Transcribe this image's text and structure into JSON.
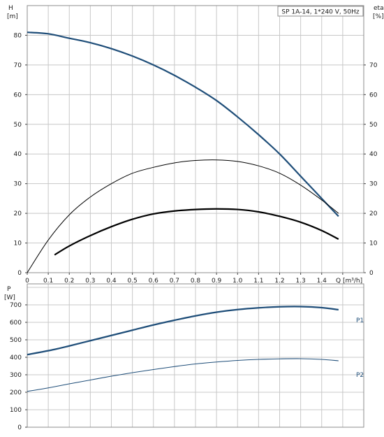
{
  "chart_data": [
    {
      "type": "line",
      "title": "SP 1A-14, 1*240 V, 50Hz",
      "ylabel": "H",
      "yunit": "[m]",
      "y2label": "eta",
      "y2unit": "[%]",
      "xlabel": "Q",
      "xunit": "[m³/h]",
      "xlim": [
        0,
        1.6
      ],
      "ylim": [
        0,
        90
      ],
      "grid": true,
      "x_ticks": [
        "0",
        "0.1",
        "0.2",
        "0.3",
        "0.4",
        "0.5",
        "0.6",
        "0.7",
        "0.8",
        "0.9",
        "1.0",
        "1.1",
        "1.2",
        "1.3",
        "1.4"
      ],
      "y_ticks": [
        "0",
        "10",
        "20",
        "30",
        "40",
        "50",
        "60",
        "70",
        "80"
      ],
      "y2_ticks": [
        "0",
        "10",
        "20",
        "30",
        "40",
        "50",
        "60",
        "70"
      ],
      "series": [
        {
          "key": "head",
          "color": "#1f4e79",
          "x": [
            0,
            0.1,
            0.2,
            0.3,
            0.4,
            0.5,
            0.6,
            0.7,
            0.8,
            0.9,
            1.0,
            1.1,
            1.2,
            1.3,
            1.4,
            1.48
          ],
          "y": [
            81,
            80.5,
            79,
            77.5,
            75.5,
            73,
            70,
            66.5,
            62.5,
            58,
            52.5,
            46.5,
            40,
            32.5,
            25,
            19
          ]
        },
        {
          "key": "efficiency",
          "color": "#000000",
          "x": [
            0,
            0.1,
            0.2,
            0.3,
            0.4,
            0.5,
            0.6,
            0.7,
            0.8,
            0.9,
            1.0,
            1.1,
            1.2,
            1.3,
            1.4,
            1.48
          ],
          "y": [
            0,
            11,
            19.5,
            25.5,
            30,
            33.5,
            35.5,
            37,
            37.8,
            38,
            37.5,
            36,
            33.5,
            29.5,
            24.5,
            20
          ]
        },
        {
          "key": "eta-bold",
          "color": "#000000",
          "x": [
            0.13,
            0.2,
            0.3,
            0.4,
            0.5,
            0.6,
            0.7,
            0.8,
            0.9,
            1.0,
            1.1,
            1.2,
            1.3,
            1.4,
            1.48
          ],
          "y": [
            6,
            9,
            12.5,
            15.5,
            18,
            19.8,
            20.8,
            21.3,
            21.5,
            21.3,
            20.5,
            19,
            17,
            14.2,
            11.3
          ]
        }
      ]
    },
    {
      "type": "line",
      "ylabel": "P",
      "yunit": "[W]",
      "xlim": [
        0,
        1.6
      ],
      "ylim": [
        0,
        820
      ],
      "grid": true,
      "y_ticks": [
        "0",
        "100",
        "200",
        "300",
        "400",
        "500",
        "600",
        "700"
      ],
      "series": [
        {
          "name": "P1",
          "color": "#1f4e79",
          "x": [
            0,
            0.13,
            0.2,
            0.3,
            0.4,
            0.5,
            0.6,
            0.7,
            0.8,
            0.9,
            1.0,
            1.1,
            1.2,
            1.3,
            1.4,
            1.48
          ],
          "y": [
            415,
            445,
            465,
            495,
            525,
            555,
            585,
            612,
            637,
            658,
            673,
            683,
            689,
            690,
            684,
            672
          ]
        },
        {
          "name": "P2",
          "color": "#1f4e79",
          "x": [
            0,
            0.1,
            0.2,
            0.3,
            0.4,
            0.5,
            0.6,
            0.7,
            0.8,
            0.9,
            1.0,
            1.1,
            1.2,
            1.3,
            1.4,
            1.48
          ],
          "y": [
            205,
            225,
            248,
            270,
            292,
            312,
            330,
            347,
            362,
            373,
            382,
            388,
            391,
            392,
            388,
            380
          ]
        }
      ]
    }
  ]
}
